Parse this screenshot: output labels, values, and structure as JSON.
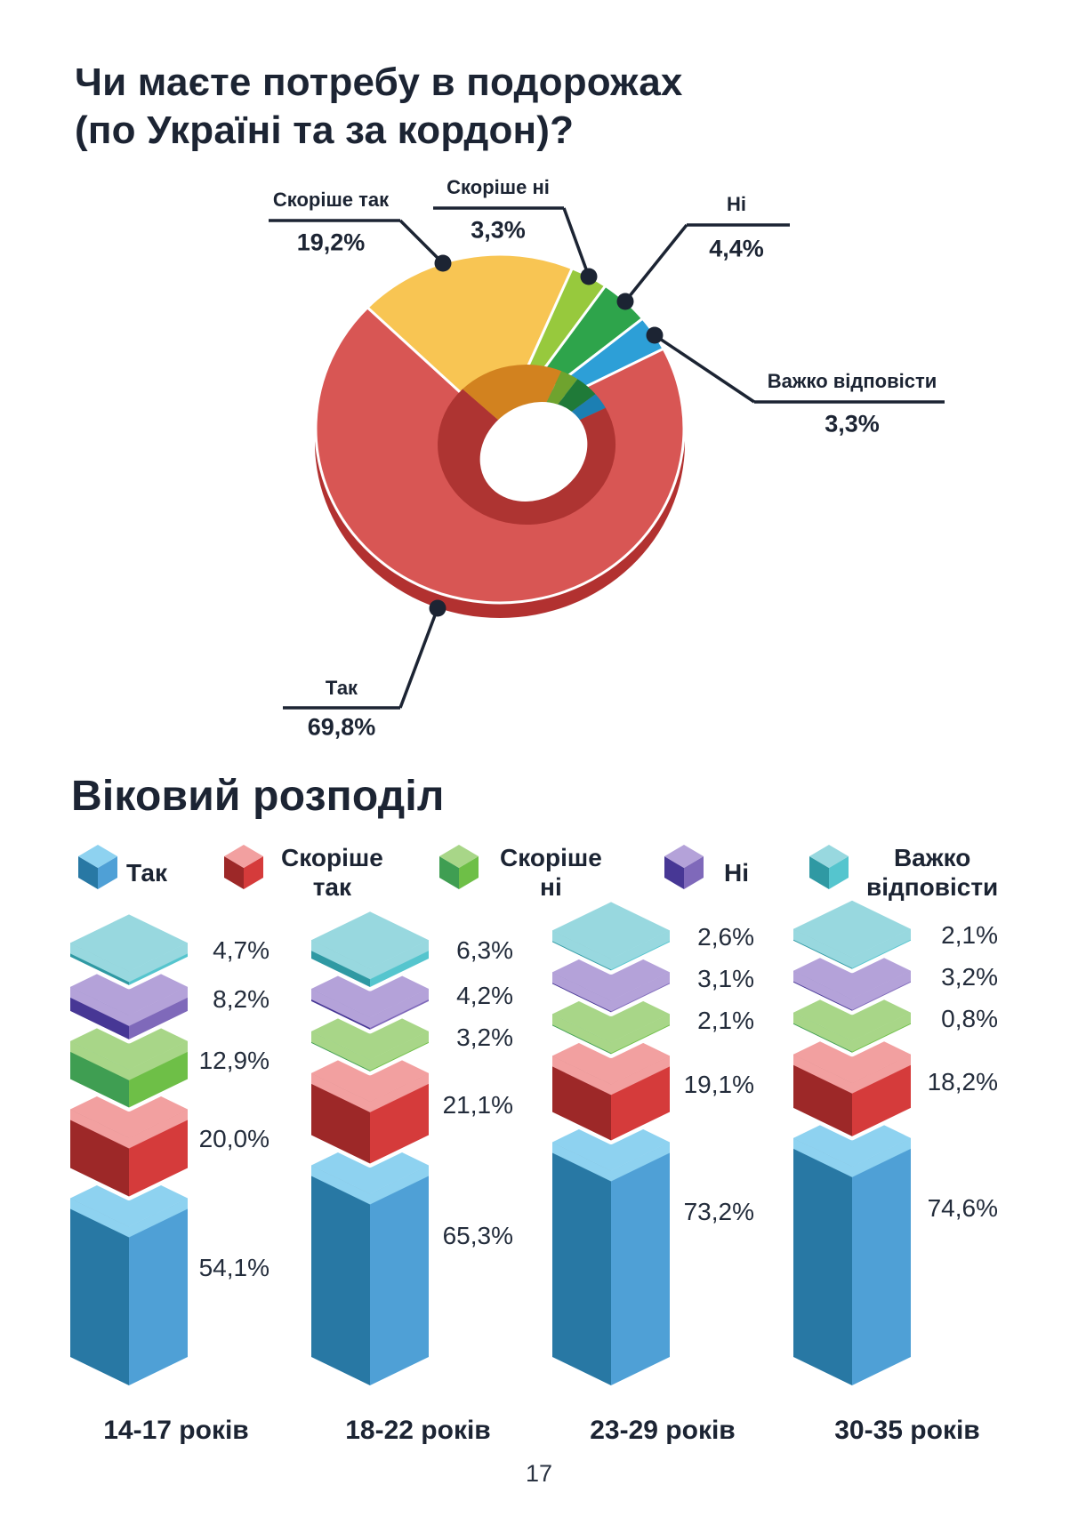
{
  "page": {
    "number": "17"
  },
  "header": {
    "title_line1": "Чи маєте потребу в подорожах",
    "title_line2": "(по Україні та за кордон)?"
  },
  "age_section": {
    "title": "Віковий розподіл",
    "legend": [
      {
        "label": "Так",
        "lines": [
          "Так"
        ]
      },
      {
        "label": "Скоріше так",
        "lines": [
          "Скоріше",
          "так"
        ]
      },
      {
        "label": "Скоріше ні",
        "lines": [
          "Скоріше",
          "ні"
        ]
      },
      {
        "label": "Ні",
        "lines": [
          "Ні"
        ]
      },
      {
        "label": "Важко відповісти",
        "lines": [
          "Важко",
          "відповісти"
        ]
      }
    ]
  },
  "chart_data": [
    {
      "type": "pie",
      "title": "Чи маєте потребу в подорожах (по Україні та за кордон)?",
      "labels": [
        "Так",
        "Скоріше так",
        "Скоріше ні",
        "Ні",
        "Важко відповісти"
      ],
      "values": [
        69.8,
        19.2,
        3.3,
        4.4,
        3.3
      ],
      "display_values": [
        "69,8%",
        "19,2%",
        "3,3%",
        "4,4%",
        "3,3%"
      ],
      "colors": [
        "#D85654",
        "#F8C553",
        "#97C93D",
        "#2EA44B",
        "#2D9FD7"
      ],
      "wall_colors": [
        "#AE3432",
        "#D2821F",
        "#6FA32E",
        "#1F7A38",
        "#1C7FB3"
      ],
      "rim_color": "#B23130",
      "hole": "donut",
      "legend_position": "callout-labels"
    },
    {
      "type": "bar",
      "stacked": true,
      "title": "Віковий розподіл",
      "categories": [
        "14-17 років",
        "18-22 років",
        "23-29 років",
        "30-35 років"
      ],
      "series": [
        {
          "name": "Так",
          "values": [
            54.1,
            65.3,
            73.2,
            74.6
          ],
          "display": [
            "54,1%",
            "65,3%",
            "73,2%",
            "74,6%"
          ]
        },
        {
          "name": "Скоріше так",
          "values": [
            20.0,
            21.1,
            19.1,
            18.2
          ],
          "display": [
            "20,0%",
            "21,1%",
            "19,1%",
            "18,2%"
          ]
        },
        {
          "name": "Скоріше ні",
          "values": [
            12.9,
            3.2,
            2.1,
            0.8
          ],
          "display": [
            "12,9%",
            "3,2%",
            "2,1%",
            "0,8%"
          ]
        },
        {
          "name": "Ні",
          "values": [
            8.2,
            4.2,
            3.1,
            3.2
          ],
          "display": [
            "8,2%",
            "4,2%",
            "3,1%",
            "3,2%"
          ]
        },
        {
          "name": "Важко відповісти",
          "values": [
            4.7,
            6.3,
            2.6,
            2.1
          ],
          "display": [
            "4,7%",
            "6,3%",
            "2,6%",
            "2,1%"
          ]
        }
      ],
      "colors": [
        {
          "top": "#8ED2F0",
          "left": "#2878A4",
          "right": "#4FA0D6"
        },
        {
          "top": "#F2A0A0",
          "left": "#9D2828",
          "right": "#D53B3B"
        },
        {
          "top": "#A8D688",
          "left": "#3F9E52",
          "right": "#6EBF47"
        },
        {
          "top": "#B4A2D9",
          "left": "#473795",
          "right": "#7F69BA"
        },
        {
          "top": "#98D8DF",
          "left": "#2F99A3",
          "right": "#55C5CE"
        }
      ],
      "ylim": [
        0,
        100
      ],
      "grid": false,
      "legend_position": "top"
    }
  ]
}
